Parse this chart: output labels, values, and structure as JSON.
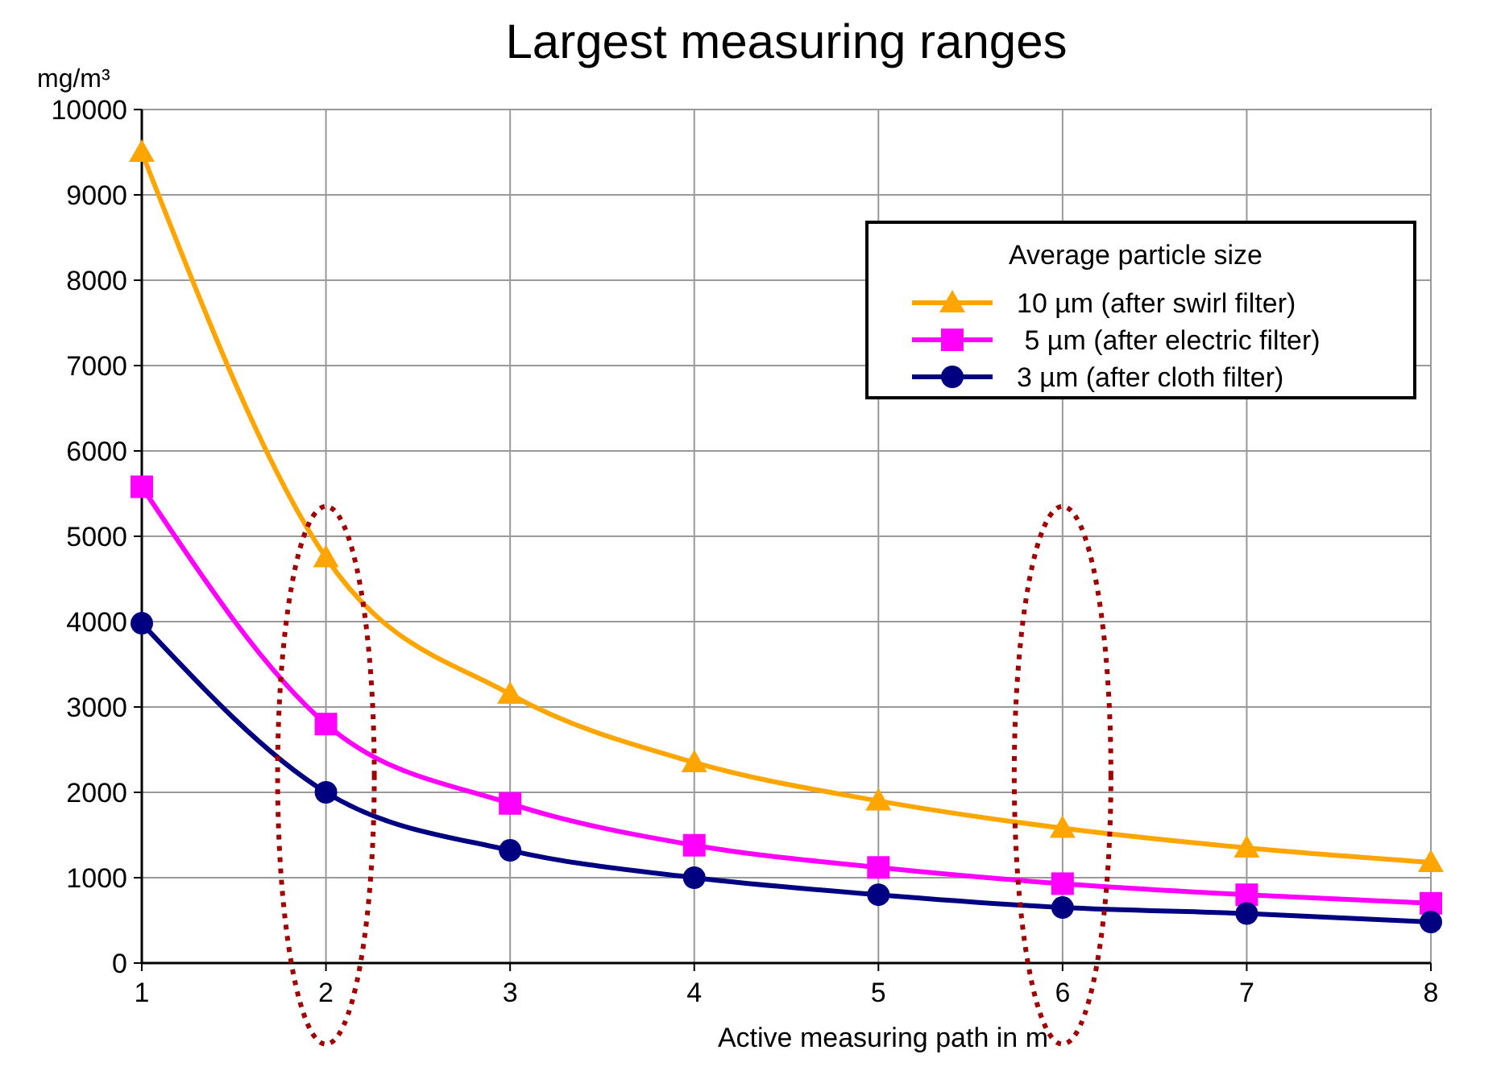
{
  "chart_data": {
    "type": "line",
    "title": "Largest measuring ranges",
    "xlabel": "Active measuring path in m",
    "ylabel": "mg/m³",
    "legend_title": "Average particle size",
    "x": [
      1,
      2,
      3,
      4,
      5,
      6,
      7,
      8
    ],
    "xlim": [
      1,
      8
    ],
    "xticks": [
      1,
      2,
      3,
      4,
      5,
      6,
      7,
      8
    ],
    "ylim": [
      0,
      10000
    ],
    "yticks": [
      0,
      1000,
      2000,
      3000,
      4000,
      5000,
      6000,
      7000,
      8000,
      9000,
      10000
    ],
    "grid": true,
    "legend": "top right",
    "series": [
      {
        "name": "10 µm (after swirl filter)",
        "color": "#ffa500",
        "marker": "triangle",
        "values": [
          9500,
          4750,
          3150,
          2350,
          1900,
          1580,
          1350,
          1180
        ]
      },
      {
        "name": " 5 µm (after electric filter)",
        "color": "#ff00ff",
        "marker": "square",
        "values": [
          5580,
          2800,
          1870,
          1380,
          1120,
          930,
          800,
          700
        ]
      },
      {
        "name": "3 µm (after cloth filter)",
        "color": "#000080",
        "marker": "circle",
        "values": [
          3980,
          2000,
          1320,
          1000,
          800,
          650,
          580,
          480
        ]
      }
    ]
  }
}
